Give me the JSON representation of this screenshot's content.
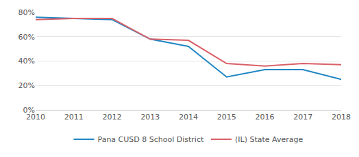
{
  "chart_data": {
    "type": "line",
    "categories": [
      "2010",
      "2011",
      "2012",
      "2013",
      "2014",
      "2015",
      "2016",
      "2017",
      "2018"
    ],
    "series": [
      {
        "name": "Pana CUSD 8 School District",
        "color": "#1f86c4",
        "values": [
          76,
          75,
          74,
          58,
          52,
          27,
          33,
          33,
          25
        ]
      },
      {
        "name": "(IL) State Average",
        "color": "#d95f66",
        "values": [
          74,
          75,
          75,
          58,
          57,
          38,
          36,
          38,
          37
        ]
      }
    ],
    "ylim": [
      0,
      80
    ],
    "yticks": [
      {
        "value": 0,
        "label": "0%"
      },
      {
        "value": 20,
        "label": "20%"
      },
      {
        "value": 40,
        "label": "40%"
      },
      {
        "value": 60,
        "label": "60%"
      },
      {
        "value": 80,
        "label": "80%"
      }
    ],
    "grid": true,
    "legend": "bottom"
  }
}
